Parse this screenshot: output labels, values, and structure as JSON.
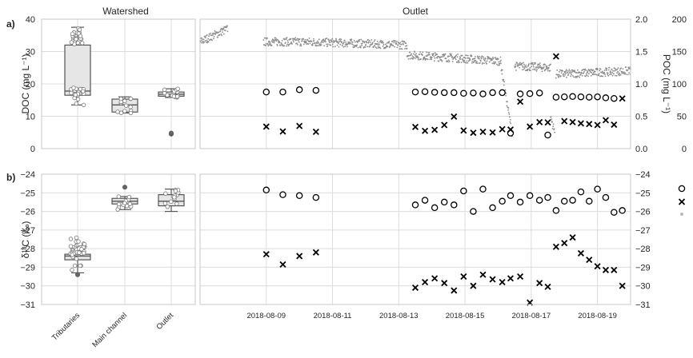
{
  "panel_labels": {
    "a": "a)",
    "b": "b)"
  },
  "chart_data": [
    {
      "type": "box",
      "panel": "a",
      "title": "Watershed",
      "ylabel": "DOC (mg L⁻¹)",
      "ylim": [
        0,
        40
      ],
      "yticks": [
        "0",
        "10",
        "20",
        "30",
        "40"
      ],
      "categories": [
        "Tributaries",
        "Main channel",
        "Outlet"
      ],
      "boxes": [
        {
          "whisker_low": 13.5,
          "q1": 16.5,
          "median": 17.8,
          "q3": 32,
          "whisker_high": 37.5,
          "outliers": []
        },
        {
          "whisker_low": 11,
          "q1": 11.3,
          "median": 13.5,
          "q3": 15.3,
          "whisker_high": 16,
          "outliers": []
        },
        {
          "whisker_low": 15.8,
          "q1": 16.2,
          "median": 16.8,
          "q3": 17.5,
          "whisker_high": 18.5,
          "outliers": [
            4.5,
            4.8
          ]
        }
      ]
    },
    {
      "type": "scatter",
      "panel": "a",
      "title": "Outlet",
      "ylim": [
        0,
        40
      ],
      "y2label": "POC (mg L⁻¹)",
      "y2lim": [
        0,
        2.0
      ],
      "y2ticks": [
        "0.0",
        "0.5",
        "1.0",
        "1.5",
        "2.0"
      ],
      "y3lim": [
        0,
        200
      ],
      "y3ticks": [
        "0",
        "50",
        "100",
        "150",
        "200"
      ],
      "xlim": [
        "2018-08-07",
        "2018-08-20"
      ],
      "xticks": [
        "2018-08-09",
        "2018-08-11",
        "2018-08-13",
        "2018-08-15",
        "2018-08-17",
        "2018-08-19"
      ],
      "series": [
        {
          "marker": "circle",
          "points": [
            [
              "2018-08-09T00:00",
              17.5
            ],
            [
              "2018-08-09T12:00",
              17.5
            ],
            [
              "2018-08-10T00:00",
              18.2
            ],
            [
              "2018-08-10T12:00",
              18
            ],
            [
              "2018-08-13T12:00",
              17.5
            ],
            [
              "2018-08-13T19:00",
              17.6
            ],
            [
              "2018-08-14T02:00",
              17.4
            ],
            [
              "2018-08-14T09:00",
              17.3
            ],
            [
              "2018-08-14T16:00",
              17.3
            ],
            [
              "2018-08-14T23:00",
              17.1
            ],
            [
              "2018-08-15T06:00",
              17.2
            ],
            [
              "2018-08-15T13:00",
              16.9
            ],
            [
              "2018-08-15T20:00",
              17.3
            ],
            [
              "2018-08-16T03:00",
              17.3
            ],
            [
              "2018-08-16T09:00",
              4.8
            ],
            [
              "2018-08-16T16:00",
              16.9
            ],
            [
              "2018-08-16T23:00",
              17.0
            ],
            [
              "2018-08-17T06:00",
              17.2
            ],
            [
              "2018-08-17T12:00",
              4.2
            ],
            [
              "2018-08-17T18:00",
              15.9
            ],
            [
              "2018-08-18T00:00",
              16.0
            ],
            [
              "2018-08-18T06:00",
              16.1
            ],
            [
              "2018-08-18T12:00",
              16.0
            ],
            [
              "2018-08-18T18:00",
              15.9
            ],
            [
              "2018-08-19T00:00",
              16.0
            ],
            [
              "2018-08-19T06:00",
              15.7
            ],
            [
              "2018-08-19T12:00",
              15.5
            ]
          ]
        },
        {
          "marker": "x",
          "points": [
            [
              "2018-08-09T00:00",
              6.8
            ],
            [
              "2018-08-09T12:00",
              5.3
            ],
            [
              "2018-08-10T00:00",
              7.0
            ],
            [
              "2018-08-10T12:00",
              5.2
            ],
            [
              "2018-08-13T12:00",
              6.7
            ],
            [
              "2018-08-13T19:00",
              5.5
            ],
            [
              "2018-08-14T02:00",
              5.8
            ],
            [
              "2018-08-14T09:00",
              7.3
            ],
            [
              "2018-08-14T16:00",
              9.9
            ],
            [
              "2018-08-14T23:00",
              5.6
            ],
            [
              "2018-08-15T06:00",
              4.9
            ],
            [
              "2018-08-15T13:00",
              5.2
            ],
            [
              "2018-08-15T20:00",
              5.0
            ],
            [
              "2018-08-16T03:00",
              6.0
            ],
            [
              "2018-08-16T09:00",
              5.9
            ],
            [
              "2018-08-16T16:00",
              14.5
            ],
            [
              "2018-08-16T23:00",
              6.8
            ],
            [
              "2018-08-17T06:00",
              8.2
            ],
            [
              "2018-08-17T12:00",
              8.1
            ],
            [
              "2018-08-17T18:00",
              28.5
            ],
            [
              "2018-08-18T00:00",
              8.5
            ],
            [
              "2018-08-18T06:00",
              8.2
            ],
            [
              "2018-08-18T12:00",
              7.8
            ],
            [
              "2018-08-18T18:00",
              7.6
            ],
            [
              "2018-08-19T00:00",
              7.3
            ],
            [
              "2018-08-19T06:00",
              8.8
            ],
            [
              "2018-08-19T12:00",
              7.4
            ],
            [
              "2018-08-19T18:00",
              15.5
            ]
          ]
        },
        {
          "marker": "dot",
          "note": "continuous",
          "segments": [
            {
              "start": "2018-08-07T00:00",
              "end": "2018-08-07T20:00",
              "from": 33,
              "to": 37
            },
            {
              "start": "2018-08-08T22:00",
              "end": "2018-08-10T04:00",
              "from": 33,
              "to": 33
            },
            {
              "start": "2018-08-10T04:00",
              "end": "2018-08-13T06:00",
              "from": 33,
              "to": 32
            },
            {
              "start": "2018-08-13T06:00",
              "end": "2018-08-16T02:00",
              "from": 29,
              "to": 27
            },
            {
              "start": "2018-08-16T02:00",
              "end": "2018-08-16T10:00",
              "from": 26,
              "to": 5
            },
            {
              "start": "2018-08-16T12:00",
              "end": "2018-08-17T14:00",
              "from": 25.5,
              "to": 25
            },
            {
              "start": "2018-08-17T14:00",
              "end": "2018-08-17T17:00",
              "from": 10,
              "to": 5
            },
            {
              "start": "2018-08-17T18:00",
              "end": "2018-08-20T00:00",
              "from": 23,
              "to": 24
            }
          ]
        }
      ]
    },
    {
      "type": "box",
      "panel": "b",
      "ylabel": "δ¹³C (‰)",
      "ylim": [
        -31,
        -24
      ],
      "yticks": [
        "−31",
        "−30",
        "−29",
        "−28",
        "−27",
        "−26",
        "−25",
        "−24"
      ],
      "categories": [
        "Tributaries",
        "Main channel",
        "Outlet"
      ],
      "boxes": [
        {
          "whisker_low": -29.3,
          "q1": -28.6,
          "median": -28.4,
          "q3": -28.3,
          "whisker_high": -27.9,
          "outliers": [
            -29.4
          ]
        },
        {
          "whisker_low": -25.9,
          "q1": -25.6,
          "median": -25.45,
          "q3": -25.3,
          "whisker_high": -25.2,
          "outliers": [
            -24.7
          ]
        },
        {
          "whisker_low": -26.0,
          "q1": -25.7,
          "median": -25.45,
          "q3": -25.1,
          "whisker_high": -24.8,
          "outliers": []
        }
      ]
    },
    {
      "type": "scatter",
      "panel": "b",
      "ylim": [
        -31,
        -24
      ],
      "y2ticks": [
        "−31",
        "−30",
        "−29",
        "−28",
        "−27",
        "−26",
        "−25",
        "−24"
      ],
      "xlim": [
        "2018-08-07",
        "2018-08-20"
      ],
      "xticks": [
        "2018-08-09",
        "2018-08-11",
        "2018-08-13",
        "2018-08-15",
        "2018-08-17",
        "2018-08-19"
      ],
      "series": [
        {
          "marker": "circle",
          "points": [
            [
              "2018-08-09T00:00",
              -24.85
            ],
            [
              "2018-08-09T12:00",
              -25.1
            ],
            [
              "2018-08-10T00:00",
              -25.15
            ],
            [
              "2018-08-10T12:00",
              -25.25
            ],
            [
              "2018-08-13T12:00",
              -25.65
            ],
            [
              "2018-08-13T19:00",
              -25.4
            ],
            [
              "2018-08-14T02:00",
              -25.8
            ],
            [
              "2018-08-14T09:00",
              -25.5
            ],
            [
              "2018-08-14T16:00",
              -25.65
            ],
            [
              "2018-08-14T23:00",
              -24.9
            ],
            [
              "2018-08-15T06:00",
              -26.0
            ],
            [
              "2018-08-15T13:00",
              -24.8
            ],
            [
              "2018-08-15T20:00",
              -25.8
            ],
            [
              "2018-08-16T03:00",
              -25.45
            ],
            [
              "2018-08-16T09:00",
              -25.15
            ],
            [
              "2018-08-16T16:00",
              -25.5
            ],
            [
              "2018-08-16T23:00",
              -25.15
            ],
            [
              "2018-08-17T06:00",
              -25.4
            ],
            [
              "2018-08-17T12:00",
              -25.25
            ],
            [
              "2018-08-17T18:00",
              -25.95
            ],
            [
              "2018-08-18T00:00",
              -25.45
            ],
            [
              "2018-08-18T06:00",
              -25.4
            ],
            [
              "2018-08-18T12:00",
              -24.95
            ],
            [
              "2018-08-18T18:00",
              -25.45
            ],
            [
              "2018-08-19T00:00",
              -24.8
            ],
            [
              "2018-08-19T06:00",
              -25.25
            ],
            [
              "2018-08-19T12:00",
              -26.05
            ],
            [
              "2018-08-19T18:00",
              -25.95
            ]
          ]
        },
        {
          "marker": "x",
          "points": [
            [
              "2018-08-09T00:00",
              -28.3
            ],
            [
              "2018-08-09T12:00",
              -28.85
            ],
            [
              "2018-08-10T00:00",
              -28.4
            ],
            [
              "2018-08-10T12:00",
              -28.2
            ],
            [
              "2018-08-13T12:00",
              -30.1
            ],
            [
              "2018-08-13T19:00",
              -29.8
            ],
            [
              "2018-08-14T02:00",
              -29.6
            ],
            [
              "2018-08-14T09:00",
              -29.85
            ],
            [
              "2018-08-14T16:00",
              -30.25
            ],
            [
              "2018-08-14T23:00",
              -29.5
            ],
            [
              "2018-08-15T06:00",
              -30.0
            ],
            [
              "2018-08-15T13:00",
              -29.4
            ],
            [
              "2018-08-15T20:00",
              -29.65
            ],
            [
              "2018-08-16T03:00",
              -29.8
            ],
            [
              "2018-08-16T09:00",
              -29.6
            ],
            [
              "2018-08-16T16:00",
              -29.5
            ],
            [
              "2018-08-16T23:00",
              -30.9
            ],
            [
              "2018-08-17T06:00",
              -29.85
            ],
            [
              "2018-08-17T12:00",
              -30.05
            ],
            [
              "2018-08-17T18:00",
              -27.9
            ],
            [
              "2018-08-18T00:00",
              -27.7
            ],
            [
              "2018-08-18T06:00",
              -27.4
            ],
            [
              "2018-08-18T12:00",
              -28.25
            ],
            [
              "2018-08-18T18:00",
              -28.6
            ],
            [
              "2018-08-19T00:00",
              -28.95
            ],
            [
              "2018-08-19T06:00",
              -29.15
            ],
            [
              "2018-08-19T12:00",
              -29.15
            ],
            [
              "2018-08-19T18:00",
              -30.0
            ]
          ]
        }
      ]
    }
  ]
}
